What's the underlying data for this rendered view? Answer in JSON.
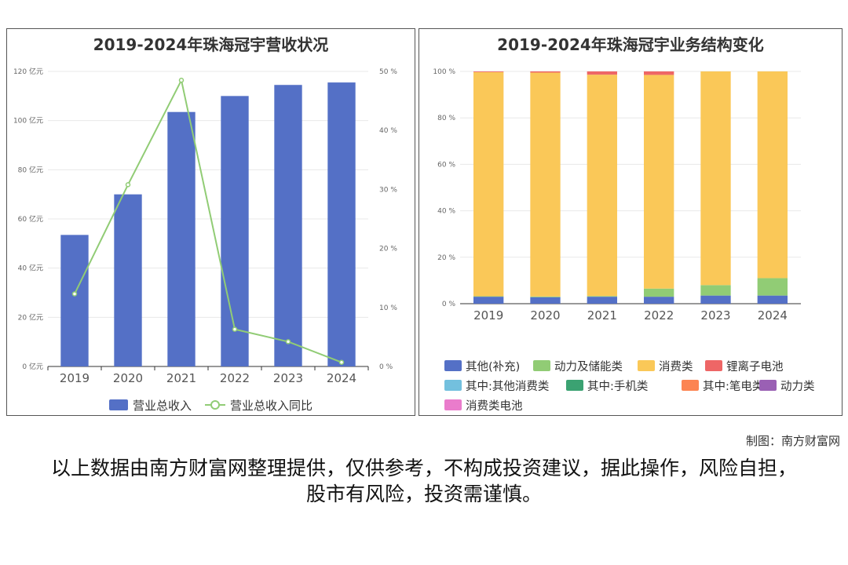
{
  "left_chart": {
    "title": "2019-2024年珠海冠宇营收状况",
    "y_left_ticks": [
      "0 亿元",
      "20 亿元",
      "40 亿元",
      "60 亿元",
      "80 亿元",
      "100 亿元",
      "120 亿元"
    ],
    "y_right_ticks": [
      "0 %",
      "10 %",
      "20 %",
      "30 %",
      "40 %",
      "50 %"
    ]
  },
  "right_chart": {
    "title": "2019-2024年珠海冠宇业务结构变化",
    "y_ticks": [
      "0 %",
      "20 %",
      "40 %",
      "60 %",
      "80 %",
      "100 %"
    ],
    "legend": [
      {
        "name": "其他(补充)",
        "color": "#5470c6"
      },
      {
        "name": "动力及储能类",
        "color": "#91cc75"
      },
      {
        "name": "消费类",
        "color": "#fac858"
      },
      {
        "name": "锂离子电池",
        "color": "#ee6666"
      },
      {
        "name": "其中:其他消费类",
        "color": "#73c0de"
      },
      {
        "name": "其中:手机类",
        "color": "#3ba272"
      },
      {
        "name": "其中:笔电类",
        "color": "#fc8452"
      },
      {
        "name": "动力类",
        "color": "#9a60b4"
      },
      {
        "name": "消费类电池",
        "color": "#ea7ccc"
      }
    ]
  },
  "chart_data": [
    {
      "type": "bar",
      "title": "2019-2024年珠海冠宇营收状况",
      "categories": [
        "2019",
        "2020",
        "2021",
        "2022",
        "2023",
        "2024"
      ],
      "series": [
        {
          "name": "营业总收入",
          "type": "bar",
          "axis": "left",
          "unit": "亿元",
          "color": "#5470c6",
          "values": [
            53.5,
            70,
            103.5,
            110,
            114.5,
            115.5
          ]
        },
        {
          "name": "营业总收入同比",
          "type": "line",
          "axis": "right",
          "unit": "%",
          "color": "#91cc75",
          "values": [
            12.3,
            30.8,
            48.5,
            6.3,
            4.2,
            0.7
          ]
        }
      ],
      "ylim_left": [
        0,
        120
      ],
      "ylim_right": [
        0,
        50
      ],
      "legend_position": "bottom"
    },
    {
      "type": "bar",
      "stacked": true,
      "title": "2019-2024年珠海冠宇业务结构变化",
      "categories": [
        "2019",
        "2020",
        "2021",
        "2022",
        "2023",
        "2024"
      ],
      "series": [
        {
          "name": "其他(补充)",
          "color": "#5470c6",
          "values": [
            3.0,
            2.8,
            3.0,
            3.0,
            3.5,
            3.5
          ]
        },
        {
          "name": "动力及储能类",
          "color": "#91cc75",
          "values": [
            0.2,
            0.3,
            0.3,
            3.5,
            4.5,
            7.5
          ]
        },
        {
          "name": "消费类",
          "color": "#fac858",
          "values": [
            96.5,
            96.4,
            95.3,
            92.0,
            92.0,
            89.0
          ]
        },
        {
          "name": "锂离子电池",
          "color": "#ee6666",
          "values": [
            0.3,
            0.5,
            1.4,
            1.5,
            0,
            0
          ]
        },
        {
          "name": "其中:其他消费类",
          "color": "#73c0de",
          "values": [
            0,
            0,
            0,
            0,
            0,
            0
          ]
        },
        {
          "name": "其中:手机类",
          "color": "#3ba272",
          "values": [
            0,
            0,
            0,
            0,
            0,
            0
          ]
        },
        {
          "name": "其中:笔电类",
          "color": "#fc8452",
          "values": [
            0,
            0,
            0,
            0,
            0,
            0
          ]
        },
        {
          "name": "动力类",
          "color": "#9a60b4",
          "values": [
            0,
            0,
            0,
            0,
            0,
            0
          ]
        },
        {
          "name": "消费类电池",
          "color": "#ea7ccc",
          "values": [
            0,
            0,
            0,
            0,
            0,
            0
          ]
        }
      ],
      "ylim": [
        0,
        100
      ],
      "unit": "%",
      "legend_position": "bottom"
    }
  ],
  "footer": {
    "credit": "制图：南方财富网",
    "disclaimer": "以上数据由南方财富网整理提供，仅供参考，不构成投资建议，据此操作，风险自担，股市有风险，投资需谨慎。"
  }
}
